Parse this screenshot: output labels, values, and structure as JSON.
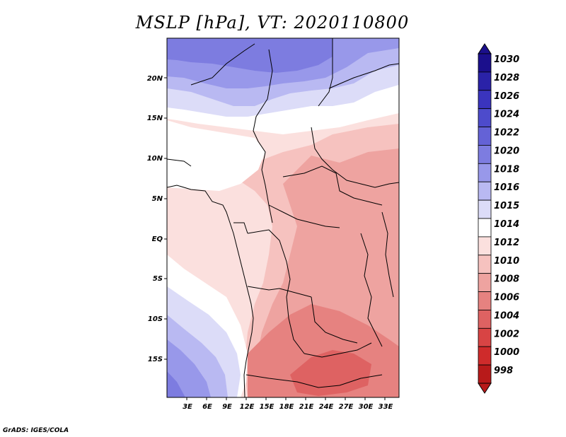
{
  "title": "MSLP [hPa], VT: 2020110800",
  "footer": "GrADS: IGES/COLA",
  "lat_labels": [
    "20N",
    "15N",
    "10N",
    "5N",
    "EQ",
    "5S",
    "10S",
    "15S"
  ],
  "lon_labels": [
    "3E",
    "6E",
    "9E",
    "12E",
    "15E",
    "18E",
    "21E",
    "24E",
    "27E",
    "30E",
    "33E"
  ],
  "colorbar": {
    "levels": [
      "1030",
      "1028",
      "1026",
      "1024",
      "1022",
      "1020",
      "1018",
      "1016",
      "1015",
      "1014",
      "1012",
      "1010",
      "1008",
      "1006",
      "1004",
      "1002",
      "1000",
      "998"
    ],
    "colors": [
      "#1b0f8c",
      "#2a22a8",
      "#3a34be",
      "#4d4bcc",
      "#6462d6",
      "#7d7ce0",
      "#9898ea",
      "#b9b9f2",
      "#dcdcf8",
      "#ffffff",
      "#fbe0de",
      "#f6c2bf",
      "#eea3a0",
      "#e68280",
      "#de6262",
      "#d84444",
      "#cf2b2b",
      "#b81a1a"
    ]
  },
  "map_fields": {
    "colors": {
      "c1020": "#7d7ce0",
      "c1018": "#9898ea",
      "c1016": "#b9b9f2",
      "c1015": "#dcdcf8",
      "c1014": "#ffffff",
      "c1012": "#fbe0de",
      "c1010": "#f6c2bf",
      "c1008": "#eea3a0",
      "c1006": "#e68280",
      "c1004": "#de6262"
    }
  }
}
